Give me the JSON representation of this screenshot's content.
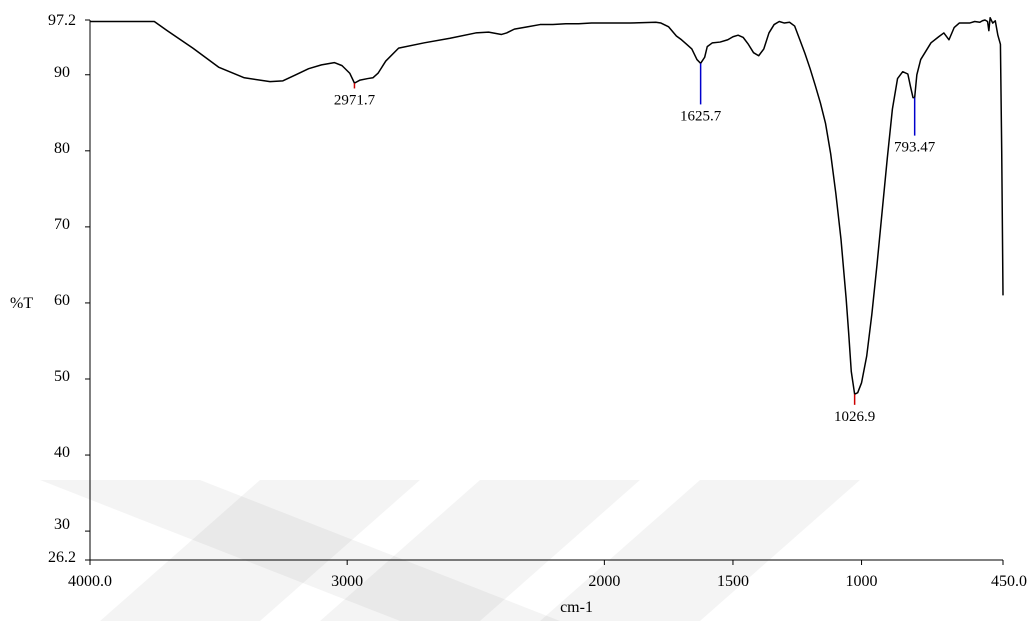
{
  "chart_data": {
    "type": "line",
    "title": "",
    "xlabel": "cm-1",
    "ylabel": "%T",
    "xlim": [
      4000.0,
      450.0
    ],
    "ylim": [
      26.2,
      97.2
    ],
    "x_reversed": true,
    "grid": false,
    "legend": "none",
    "x_ticks": [
      {
        "value": 4000,
        "label": "4000.0"
      },
      {
        "value": 3000,
        "label": "3000"
      },
      {
        "value": 2000,
        "label": "2000"
      },
      {
        "value": 1500,
        "label": "1500"
      },
      {
        "value": 1000,
        "label": "1000"
      },
      {
        "value": 450,
        "label": "450.0"
      }
    ],
    "y_ticks": [
      {
        "value": 97.2,
        "label": "97.2"
      },
      {
        "value": 90,
        "label": "90"
      },
      {
        "value": 80,
        "label": "80"
      },
      {
        "value": 70,
        "label": "70"
      },
      {
        "value": 60,
        "label": "60"
      },
      {
        "value": 50,
        "label": "50"
      },
      {
        "value": 40,
        "label": "40"
      },
      {
        "value": 30,
        "label": "30"
      },
      {
        "value": 26.2,
        "label": "26.2"
      }
    ],
    "series": [
      {
        "color": "#000000",
        "x": [
          4000,
          3750,
          3700,
          3600,
          3500,
          3400,
          3300,
          3250,
          3200,
          3150,
          3100,
          3050,
          3020,
          2990,
          2971.7,
          2950,
          2920,
          2900,
          2880,
          2850,
          2800,
          2700,
          2600,
          2500,
          2450,
          2400,
          2380,
          2350,
          2300,
          2250,
          2200,
          2150,
          2100,
          2050,
          2000,
          1900,
          1800,
          1780,
          1750,
          1720,
          1700,
          1680,
          1660,
          1640,
          1625.7,
          1610,
          1600,
          1580,
          1550,
          1520,
          1500,
          1480,
          1460,
          1440,
          1420,
          1400,
          1380,
          1360,
          1340,
          1320,
          1300,
          1280,
          1260,
          1240,
          1220,
          1200,
          1180,
          1160,
          1140,
          1120,
          1100,
          1080,
          1060,
          1050,
          1040,
          1026.9,
          1015,
          1000,
          980,
          960,
          940,
          920,
          900,
          880,
          860,
          840,
          820,
          810,
          800,
          793.47,
          785,
          770,
          750,
          730,
          700,
          680,
          660,
          640,
          620,
          600,
          580,
          560,
          540,
          530,
          520,
          510,
          505,
          500,
          490,
          480,
          470,
          460,
          455,
          450
        ],
        "y": [
          97.0,
          97.0,
          95.8,
          93.5,
          91.0,
          89.6,
          89.1,
          89.2,
          90.0,
          90.8,
          91.3,
          91.6,
          91.2,
          90.2,
          88.9,
          89.3,
          89.5,
          89.6,
          90.2,
          91.8,
          93.5,
          94.2,
          94.8,
          95.5,
          95.6,
          95.3,
          95.5,
          96.0,
          96.3,
          96.6,
          96.6,
          96.7,
          96.7,
          96.8,
          96.8,
          96.8,
          96.9,
          96.8,
          96.3,
          95.1,
          94.6,
          94.0,
          93.4,
          92.0,
          91.5,
          92.3,
          93.7,
          94.2,
          94.3,
          94.6,
          95.0,
          95.2,
          94.9,
          94.0,
          92.9,
          92.5,
          93.4,
          95.5,
          96.6,
          97.0,
          96.8,
          96.9,
          96.4,
          94.6,
          92.8,
          90.8,
          88.6,
          86.3,
          83.6,
          79.6,
          74.4,
          68.4,
          60.6,
          56.0,
          51.0,
          48.0,
          48.2,
          49.5,
          53.0,
          58.5,
          65.0,
          72.0,
          79.0,
          85.5,
          89.5,
          90.4,
          90.1,
          88.5,
          87.0,
          87.0,
          90.0,
          92.0,
          93.1,
          94.2,
          95.0,
          95.5,
          94.6,
          96.2,
          96.8,
          96.8,
          96.8,
          97.0,
          96.9,
          97.1,
          97.2,
          97.0,
          95.8,
          97.5,
          96.8,
          97.1,
          95.2,
          94.0,
          80.0,
          61.0
        ]
      }
    ],
    "annotations": [
      {
        "label": "2971.7",
        "x": 2971.7,
        "y": 88.9,
        "marker_color": "#cc0000",
        "marker_to_y": 88.2
      },
      {
        "label": "1625.7",
        "x": 1625.7,
        "y": 91.5,
        "marker_color": "#0000cc",
        "marker_to_y": 86.1
      },
      {
        "label": "1026.9",
        "x": 1026.9,
        "y": 48.0,
        "marker_color": "#cc0000",
        "marker_to_y": 46.6
      },
      {
        "label": "793.47",
        "x": 793.47,
        "y": 87.0,
        "marker_color": "#0000cc",
        "marker_to_y": 82.0
      }
    ]
  }
}
